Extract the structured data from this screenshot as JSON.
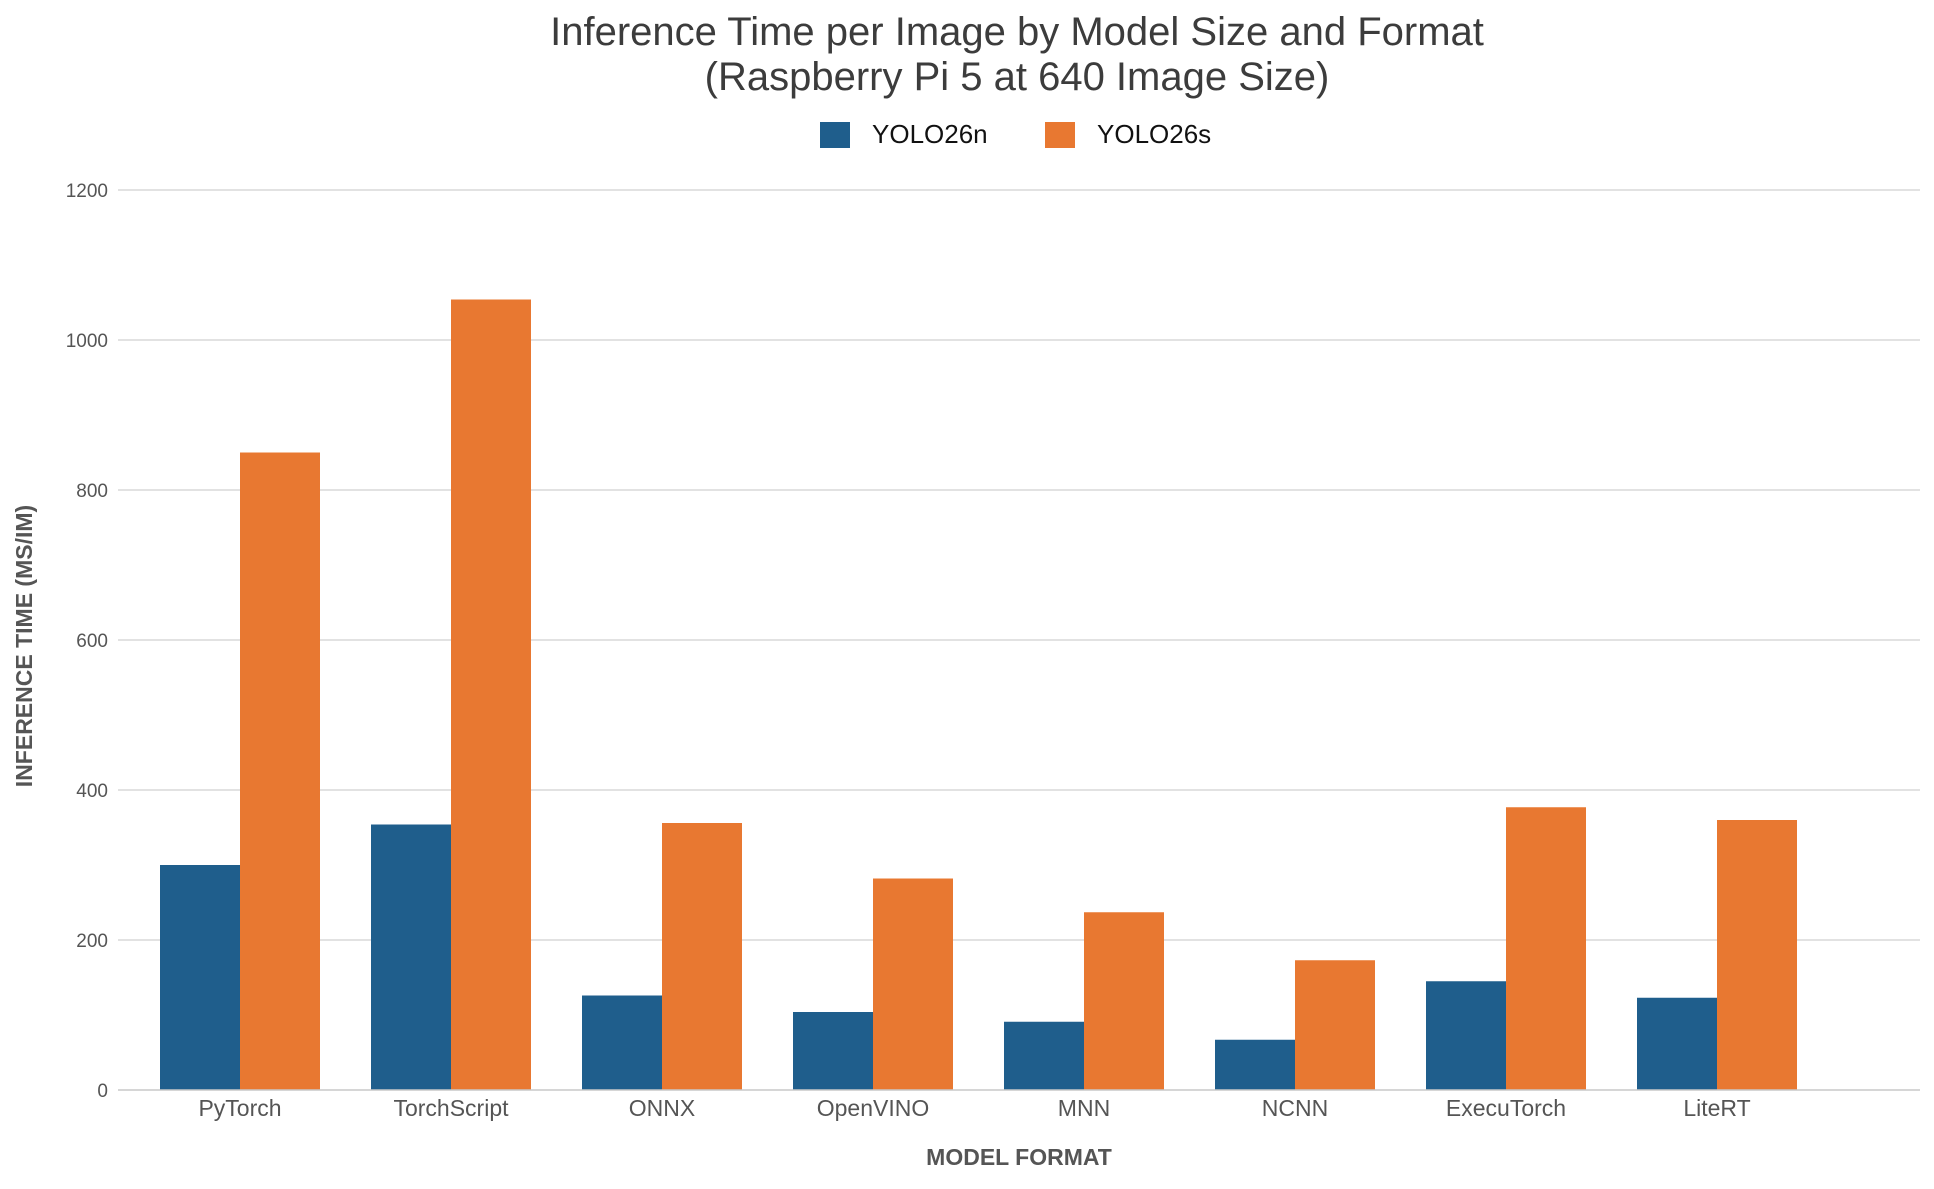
{
  "chart_data": {
    "type": "bar",
    "title_line1": "Inference Time per Image by Model Size and Format",
    "title_line2": "(Raspberry Pi 5 at 640 Image Size)",
    "xlabel": "MODEL FORMAT",
    "ylabel": "INFERENCE TIME (MS/IM)",
    "categories": [
      "PyTorch",
      "TorchScript",
      "ONNX",
      "OpenVINO",
      "MNN",
      "NCNN",
      "ExecuTorch",
      "LiteRT"
    ],
    "series": [
      {
        "name": "YOLO26n",
        "color": "#1f5e8c",
        "values": [
          300,
          354,
          126,
          104,
          91,
          67,
          145,
          123
        ]
      },
      {
        "name": "YOLO26s",
        "color": "#e87831",
        "values": [
          850,
          1054,
          356,
          282,
          237,
          173,
          377,
          360
        ]
      }
    ],
    "ylim": [
      0,
      1200
    ],
    "yticks": [
      0,
      200,
      400,
      600,
      800,
      1000,
      1200
    ],
    "grid": "horizontal",
    "legend_position": "top-center"
  },
  "colors": {
    "title": "#3c3c3c",
    "axis_label": "#555555",
    "tick_label": "#555555",
    "grid": "#d0d0d0"
  }
}
